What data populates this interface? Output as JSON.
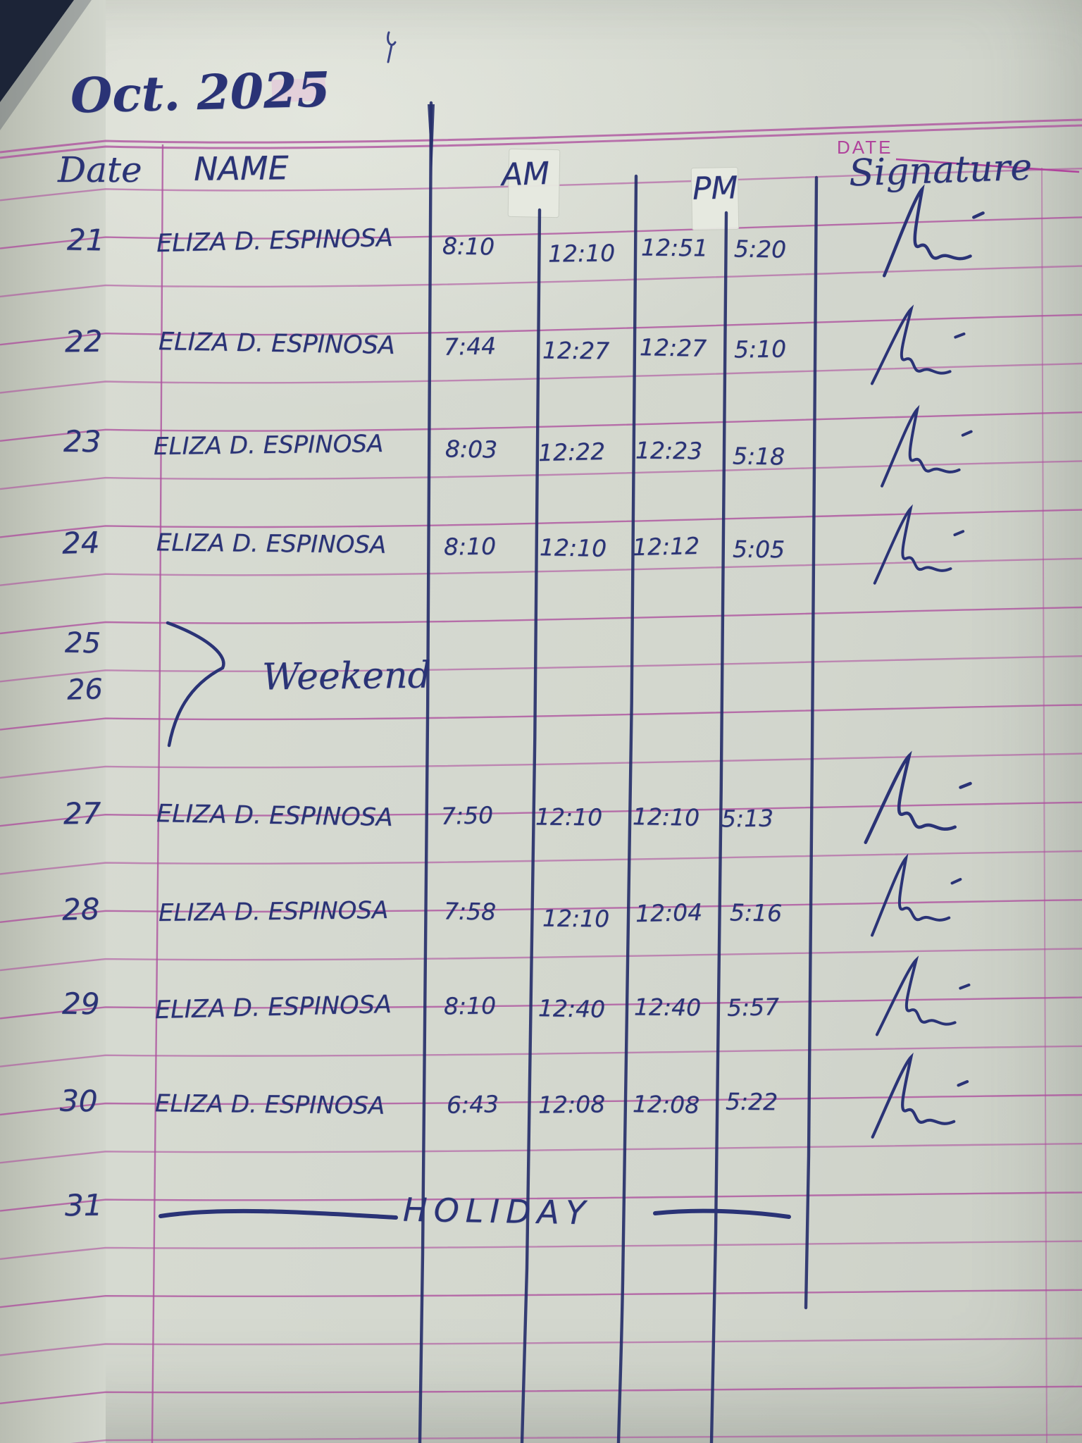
{
  "page_title": "Oct. 2025",
  "printed": {
    "date_label": "DATE"
  },
  "table": {
    "headers": {
      "date": "Date",
      "name": "NAME",
      "am": "AM",
      "pm": "PM",
      "signature": "Signature"
    },
    "rows": [
      {
        "date": "21",
        "name": "ELIZA D. ESPINOSA",
        "am_in": "8:10",
        "am_out": "12:10",
        "pm_in": "12:51",
        "pm_out": "5:20"
      },
      {
        "date": "22",
        "name": "ELIZA D. ESPINOSA",
        "am_in": "7:44",
        "am_out": "12:27",
        "pm_in": "12:27",
        "pm_out": "5:10"
      },
      {
        "date": "23",
        "name": "ELIZA D. ESPINOSA",
        "am_in": "8:03",
        "am_out": "12:22",
        "pm_in": "12:23",
        "pm_out": "5:18"
      },
      {
        "date": "24",
        "name": "ELIZA D. ESPINOSA",
        "am_in": "8:10",
        "am_out": "12:10",
        "pm_in": "12:12",
        "pm_out": "5:05"
      },
      {
        "date": "25"
      },
      {
        "date": "26"
      },
      {
        "date": "27",
        "name": "ELIZA D. ESPINOSA",
        "am_in": "7:50",
        "am_out": "12:10",
        "pm_in": "12:10",
        "pm_out": "5:13"
      },
      {
        "date": "28",
        "name": "ELIZA D. ESPINOSA",
        "am_in": "7:58",
        "am_out": "12:10",
        "pm_in": "12:04",
        "pm_out": "5:16"
      },
      {
        "date": "29",
        "name": "ELIZA D. ESPINOSA",
        "am_in": "8:10",
        "am_out": "12:40",
        "pm_in": "12:40",
        "pm_out": "5:57"
      },
      {
        "date": "30",
        "name": "ELIZA D. ESPINOSA",
        "am_in": "6:43",
        "am_out": "12:08",
        "pm_in": "12:08",
        "pm_out": "5:22"
      },
      {
        "date": "31"
      }
    ],
    "weekend_note": "Weekend",
    "holiday_note": "HOLIDAY"
  },
  "colors": {
    "ink_blue": "#2a3376",
    "rule_magenta": "#ad509e",
    "printed_magenta": "#b0449c",
    "paper": "#d5d9d0"
  }
}
